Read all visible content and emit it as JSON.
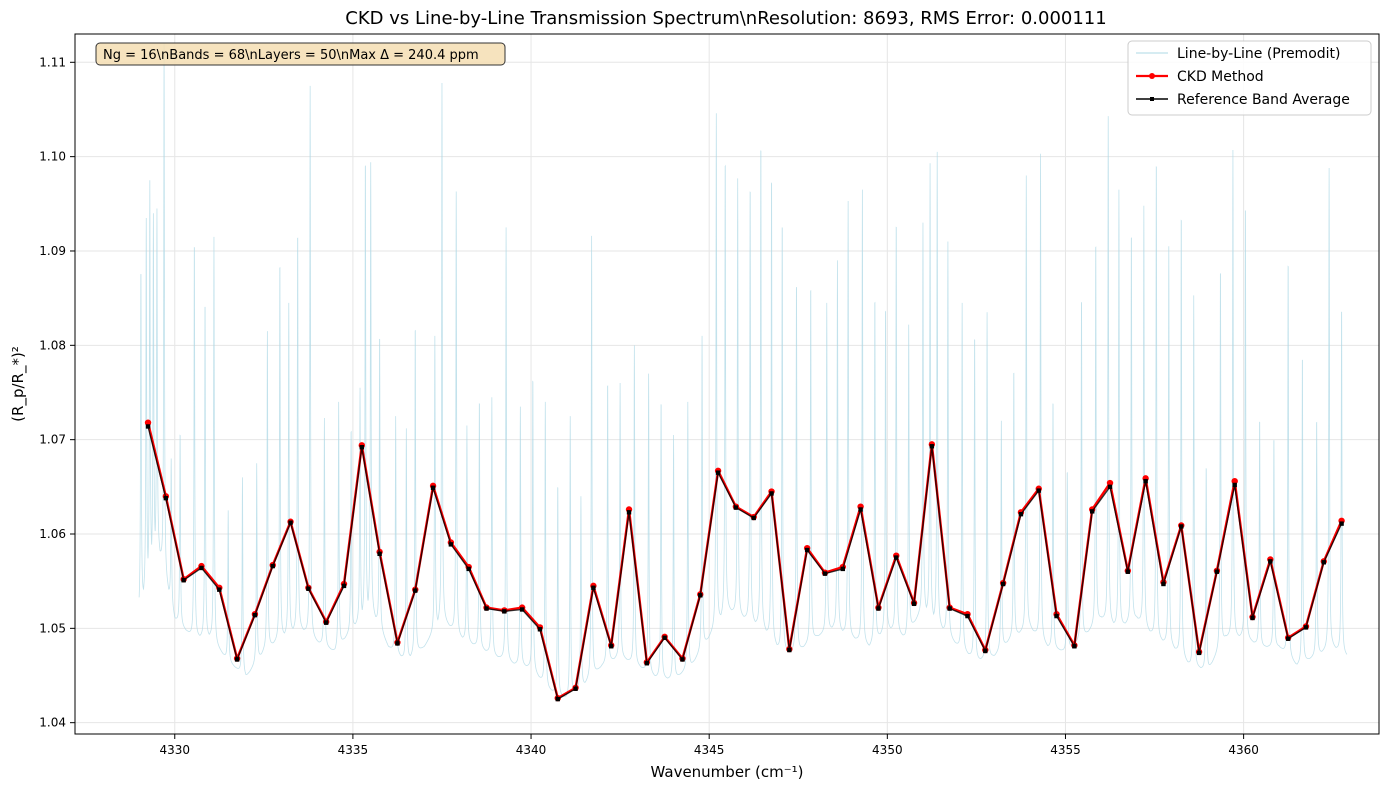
{
  "chart_data": {
    "type": "line",
    "title": "CKD vs Line-by-Line Transmission Spectrum\\nResolution: 8693, RMS Error: 0.000111",
    "xlabel": "Wavenumber (cm⁻¹)",
    "ylabel": "(R_p/R_*)²",
    "xlim": [
      4327.2,
      4363.8
    ],
    "ylim": [
      1.0388,
      1.113
    ],
    "xticks": [
      4330,
      4335,
      4340,
      4345,
      4350,
      4355,
      4360
    ],
    "yticks": [
      1.04,
      1.05,
      1.06,
      1.07,
      1.08,
      1.09,
      1.1,
      1.11
    ],
    "xtick_labels": [
      "4330",
      "4335",
      "4340",
      "4345",
      "4350",
      "4355",
      "4360"
    ],
    "ytick_labels": [
      "1.04",
      "1.05",
      "1.06",
      "1.07",
      "1.08",
      "1.09",
      "1.10",
      "1.11"
    ],
    "grid": true,
    "legend_position": "top-right",
    "annotation": "Ng = 16\\nBands = 68\\nLayers = 50\\nMax Δ = 240.4 ppm",
    "series": [
      {
        "name": "Line-by-Line (Premodit)",
        "color": "#add8e6",
        "style": "thin-line",
        "x_range": [
          4329.0,
          4362.9
        ],
        "baseline": [
          [
            4329.0,
            1.0513
          ],
          [
            4329.5,
            1.059
          ],
          [
            4330.0,
            1.051
          ],
          [
            4330.5,
            1.049
          ],
          [
            4331.0,
            1.049
          ],
          [
            4331.5,
            1.0465
          ],
          [
            4332.0,
            1.0448
          ],
          [
            4332.5,
            1.0475
          ],
          [
            4333.0,
            1.049
          ],
          [
            4333.5,
            1.05
          ],
          [
            4334.0,
            1.0485
          ],
          [
            4334.5,
            1.0475
          ],
          [
            4335.0,
            1.05
          ],
          [
            4335.5,
            1.052
          ],
          [
            4336.0,
            1.048
          ],
          [
            4336.5,
            1.0465
          ],
          [
            4337.0,
            1.048
          ],
          [
            4337.5,
            1.051
          ],
          [
            4338.0,
            1.049
          ],
          [
            4338.5,
            1.048
          ],
          [
            4339.0,
            1.047
          ],
          [
            4339.5,
            1.0462
          ],
          [
            4340.0,
            1.0458
          ],
          [
            4340.5,
            1.0435
          ],
          [
            4341.0,
            1.0425
          ],
          [
            4341.5,
            1.044
          ],
          [
            4342.0,
            1.046
          ],
          [
            4342.5,
            1.047
          ],
          [
            4343.0,
            1.046
          ],
          [
            4343.5,
            1.0448
          ],
          [
            4344.0,
            1.0445
          ],
          [
            4344.5,
            1.046
          ],
          [
            4345.0,
            1.049
          ],
          [
            4345.5,
            1.052
          ],
          [
            4346.0,
            1.051
          ],
          [
            4346.5,
            1.05
          ],
          [
            4347.0,
            1.0475
          ],
          [
            4347.5,
            1.0475
          ],
          [
            4348.0,
            1.049
          ],
          [
            4348.5,
            1.05
          ],
          [
            4349.0,
            1.049
          ],
          [
            4349.5,
            1.048
          ],
          [
            4350.0,
            1.05
          ],
          [
            4350.5,
            1.049
          ],
          [
            4351.0,
            1.052
          ],
          [
            4351.5,
            1.05
          ],
          [
            4352.0,
            1.048
          ],
          [
            4352.5,
            1.0465
          ],
          [
            4353.0,
            1.047
          ],
          [
            4353.5,
            1.049
          ],
          [
            4354.0,
            1.05
          ],
          [
            4354.5,
            1.048
          ],
          [
            4355.0,
            1.0475
          ],
          [
            4355.5,
            1.049
          ],
          [
            4356.0,
            1.051
          ],
          [
            4356.5,
            1.05
          ],
          [
            4357.0,
            1.051
          ],
          [
            4357.5,
            1.049
          ],
          [
            4358.0,
            1.048
          ],
          [
            4358.5,
            1.046
          ],
          [
            4359.0,
            1.0455
          ],
          [
            4359.5,
            1.049
          ],
          [
            4360.0,
            1.049
          ],
          [
            4360.5,
            1.048
          ],
          [
            4361.0,
            1.048
          ],
          [
            4361.5,
            1.046
          ],
          [
            4362.0,
            1.047
          ],
          [
            4362.5,
            1.048
          ],
          [
            4362.9,
            1.047
          ]
        ],
        "peaks": [
          [
            4329.05,
            1.0885
          ],
          [
            4329.2,
            1.0935
          ],
          [
            4329.3,
            1.0975
          ],
          [
            4329.4,
            1.094
          ],
          [
            4329.5,
            1.0945
          ],
          [
            4329.7,
            1.112
          ],
          [
            4329.9,
            1.068
          ],
          [
            4330.15,
            1.071
          ],
          [
            4330.55,
            1.0915
          ],
          [
            4330.85,
            1.085
          ],
          [
            4331.1,
            1.0915
          ],
          [
            4331.5,
            1.0625
          ],
          [
            4331.9,
            1.066
          ],
          [
            4332.3,
            1.0675
          ],
          [
            4332.6,
            1.0815
          ],
          [
            4332.95,
            1.0893
          ],
          [
            4333.2,
            1.0845
          ],
          [
            4333.45,
            1.0925
          ],
          [
            4333.8,
            1.1075
          ],
          [
            4334.2,
            1.0723
          ],
          [
            4334.6,
            1.074
          ],
          [
            4334.95,
            1.0714
          ],
          [
            4335.2,
            1.0755
          ],
          [
            4335.35,
            1.1003
          ],
          [
            4335.5,
            1.0994
          ],
          [
            4335.75,
            1.0815
          ],
          [
            4336.2,
            1.0725
          ],
          [
            4336.5,
            1.0712
          ],
          [
            4336.75,
            1.0825
          ],
          [
            4337.3,
            1.081
          ],
          [
            4337.5,
            1.1078
          ],
          [
            4337.9,
            1.0963
          ],
          [
            4338.2,
            1.0715
          ],
          [
            4338.55,
            1.0745
          ],
          [
            4338.9,
            1.0745
          ],
          [
            4339.3,
            1.0925
          ],
          [
            4339.7,
            1.0735
          ],
          [
            4340.05,
            1.077
          ],
          [
            4340.4,
            1.074
          ],
          [
            4340.75,
            1.0655
          ],
          [
            4341.1,
            1.0725
          ],
          [
            4341.4,
            1.064
          ],
          [
            4341.7,
            1.0916
          ],
          [
            4342.15,
            1.0765
          ],
          [
            4342.5,
            1.076
          ],
          [
            4342.9,
            1.08
          ],
          [
            4343.3,
            1.077
          ],
          [
            4343.65,
            1.0745
          ],
          [
            4344.0,
            1.0705
          ],
          [
            4344.4,
            1.074
          ],
          [
            4344.8,
            1.081
          ],
          [
            4345.2,
            1.1046
          ],
          [
            4345.45,
            1.1003
          ],
          [
            4345.8,
            1.0977
          ],
          [
            4346.15,
            1.0975
          ],
          [
            4346.45,
            1.102
          ],
          [
            4346.75,
            1.0985
          ],
          [
            4347.05,
            1.0937
          ],
          [
            4347.45,
            1.0872
          ],
          [
            4347.85,
            1.0868
          ],
          [
            4348.3,
            1.0845
          ],
          [
            4348.6,
            1.089
          ],
          [
            4348.9,
            1.0953
          ],
          [
            4349.3,
            1.0965
          ],
          [
            4349.65,
            1.0855
          ],
          [
            4349.95,
            1.0845
          ],
          [
            4350.25,
            1.0937
          ],
          [
            4350.6,
            1.0822
          ],
          [
            4351.0,
            1.093
          ],
          [
            4351.2,
            1.0993
          ],
          [
            4351.4,
            1.1005
          ],
          [
            4351.7,
            1.091
          ],
          [
            4352.1,
            1.0845
          ],
          [
            4352.45,
            1.0815
          ],
          [
            4352.8,
            1.0835
          ],
          [
            4353.2,
            1.072
          ],
          [
            4353.55,
            1.0778
          ],
          [
            4353.9,
            1.098
          ],
          [
            4354.3,
            1.1003
          ],
          [
            4354.65,
            1.0745
          ],
          [
            4355.05,
            1.067
          ],
          [
            4355.45,
            1.0855
          ],
          [
            4355.85,
            1.0915
          ],
          [
            4356.2,
            1.1043
          ],
          [
            4356.5,
            1.0965
          ],
          [
            4356.85,
            1.0925
          ],
          [
            4357.2,
            1.0948
          ],
          [
            4357.55,
            1.1003
          ],
          [
            4357.9,
            1.0905
          ],
          [
            4358.25,
            1.0945
          ],
          [
            4358.6,
            1.0853
          ],
          [
            4358.95,
            1.0675
          ],
          [
            4359.35,
            1.0887
          ],
          [
            4359.7,
            1.1007
          ],
          [
            4360.05,
            1.0955
          ],
          [
            4360.45,
            1.0725
          ],
          [
            4360.85,
            1.0705
          ],
          [
            4361.25,
            1.0895
          ],
          [
            4361.65,
            1.0793
          ],
          [
            4362.05,
            1.0725
          ],
          [
            4362.4,
            1.0988
          ],
          [
            4362.75,
            1.0845
          ]
        ]
      },
      {
        "name": "CKD Method",
        "color": "#ff0000",
        "x": [
          4329.25,
          4329.75,
          4330.25,
          4330.75,
          4331.25,
          4331.75,
          4332.25,
          4332.75,
          4333.25,
          4333.75,
          4334.25,
          4334.75,
          4335.25,
          4335.75,
          4336.25,
          4336.75,
          4337.25,
          4337.75,
          4338.25,
          4338.75,
          4339.25,
          4339.75,
          4340.25,
          4340.75,
          4341.25,
          4341.75,
          4342.25,
          4342.75,
          4343.25,
          4343.75,
          4344.25,
          4344.75,
          4345.25,
          4345.75,
          4346.25,
          4346.75,
          4347.25,
          4347.75,
          4348.25,
          4348.75,
          4349.25,
          4349.75,
          4350.25,
          4350.75,
          4351.25,
          4351.75,
          4352.25,
          4352.75,
          4353.25,
          4353.75,
          4354.25,
          4354.75,
          4355.25,
          4355.75,
          4356.25,
          4356.75,
          4357.25,
          4357.75,
          4358.25,
          4358.75,
          4359.25,
          4359.75,
          4360.25,
          4360.75,
          4361.25,
          4361.75,
          4362.25,
          4362.75
        ],
        "values": [
          1.0718,
          1.064,
          1.0552,
          1.0566,
          1.0543,
          1.0468,
          1.0515,
          1.0567,
          1.0613,
          1.0543,
          1.0507,
          1.0547,
          1.0694,
          1.0581,
          1.0485,
          1.0541,
          1.0651,
          1.0591,
          1.0565,
          1.0522,
          1.0519,
          1.0522,
          1.0501,
          1.0426,
          1.0437,
          1.0545,
          1.0482,
          1.0626,
          1.0464,
          1.0491,
          1.0468,
          1.0536,
          1.0667,
          1.0629,
          1.0618,
          1.0645,
          1.0478,
          1.0585,
          1.0559,
          1.0565,
          1.0629,
          1.0522,
          1.0577,
          1.0527,
          1.0695,
          1.0522,
          1.0515,
          1.0477,
          1.0548,
          1.0623,
          1.0648,
          1.0515,
          1.0482,
          1.0626,
          1.0654,
          1.0561,
          1.0659,
          1.0549,
          1.0609,
          1.0475,
          1.0561,
          1.0656,
          1.0512,
          1.0573,
          1.049,
          1.0502,
          1.0571,
          1.0614
        ]
      },
      {
        "name": "Reference Band Average",
        "color": "#000000",
        "x": [
          4329.25,
          4329.75,
          4330.25,
          4330.75,
          4331.25,
          4331.75,
          4332.25,
          4332.75,
          4333.25,
          4333.75,
          4334.25,
          4334.75,
          4335.25,
          4335.75,
          4336.25,
          4336.75,
          4337.25,
          4337.75,
          4338.25,
          4338.75,
          4339.25,
          4339.75,
          4340.25,
          4340.75,
          4341.25,
          4341.75,
          4342.25,
          4342.75,
          4343.25,
          4343.75,
          4344.25,
          4344.75,
          4345.25,
          4345.75,
          4346.25,
          4346.75,
          4347.25,
          4347.75,
          4348.25,
          4348.75,
          4349.25,
          4349.75,
          4350.25,
          4350.75,
          4351.25,
          4351.75,
          4352.25,
          4352.75,
          4353.25,
          4353.75,
          4354.25,
          4354.75,
          4355.25,
          4355.75,
          4356.25,
          4356.75,
          4357.25,
          4357.75,
          4358.25,
          4358.75,
          4359.25,
          4359.75,
          4360.25,
          4360.75,
          4361.25,
          4361.75,
          4362.25,
          4362.75
        ],
        "values": [
          1.0714,
          1.0638,
          1.0551,
          1.0564,
          1.0541,
          1.0467,
          1.0514,
          1.0566,
          1.0612,
          1.0542,
          1.0506,
          1.0545,
          1.0692,
          1.0579,
          1.0484,
          1.054,
          1.0649,
          1.0589,
          1.0563,
          1.0521,
          1.0518,
          1.052,
          1.0499,
          1.0425,
          1.0436,
          1.0543,
          1.0481,
          1.0623,
          1.0463,
          1.049,
          1.0467,
          1.0535,
          1.0665,
          1.0628,
          1.0617,
          1.0643,
          1.0477,
          1.0583,
          1.0558,
          1.0563,
          1.0626,
          1.0521,
          1.0575,
          1.0526,
          1.0693,
          1.0521,
          1.0513,
          1.0476,
          1.0547,
          1.0621,
          1.0646,
          1.0513,
          1.0481,
          1.0624,
          1.065,
          1.056,
          1.0656,
          1.0547,
          1.0608,
          1.0474,
          1.056,
          1.0652,
          1.0511,
          1.0571,
          1.0489,
          1.0501,
          1.057,
          1.0611
        ]
      }
    ]
  }
}
